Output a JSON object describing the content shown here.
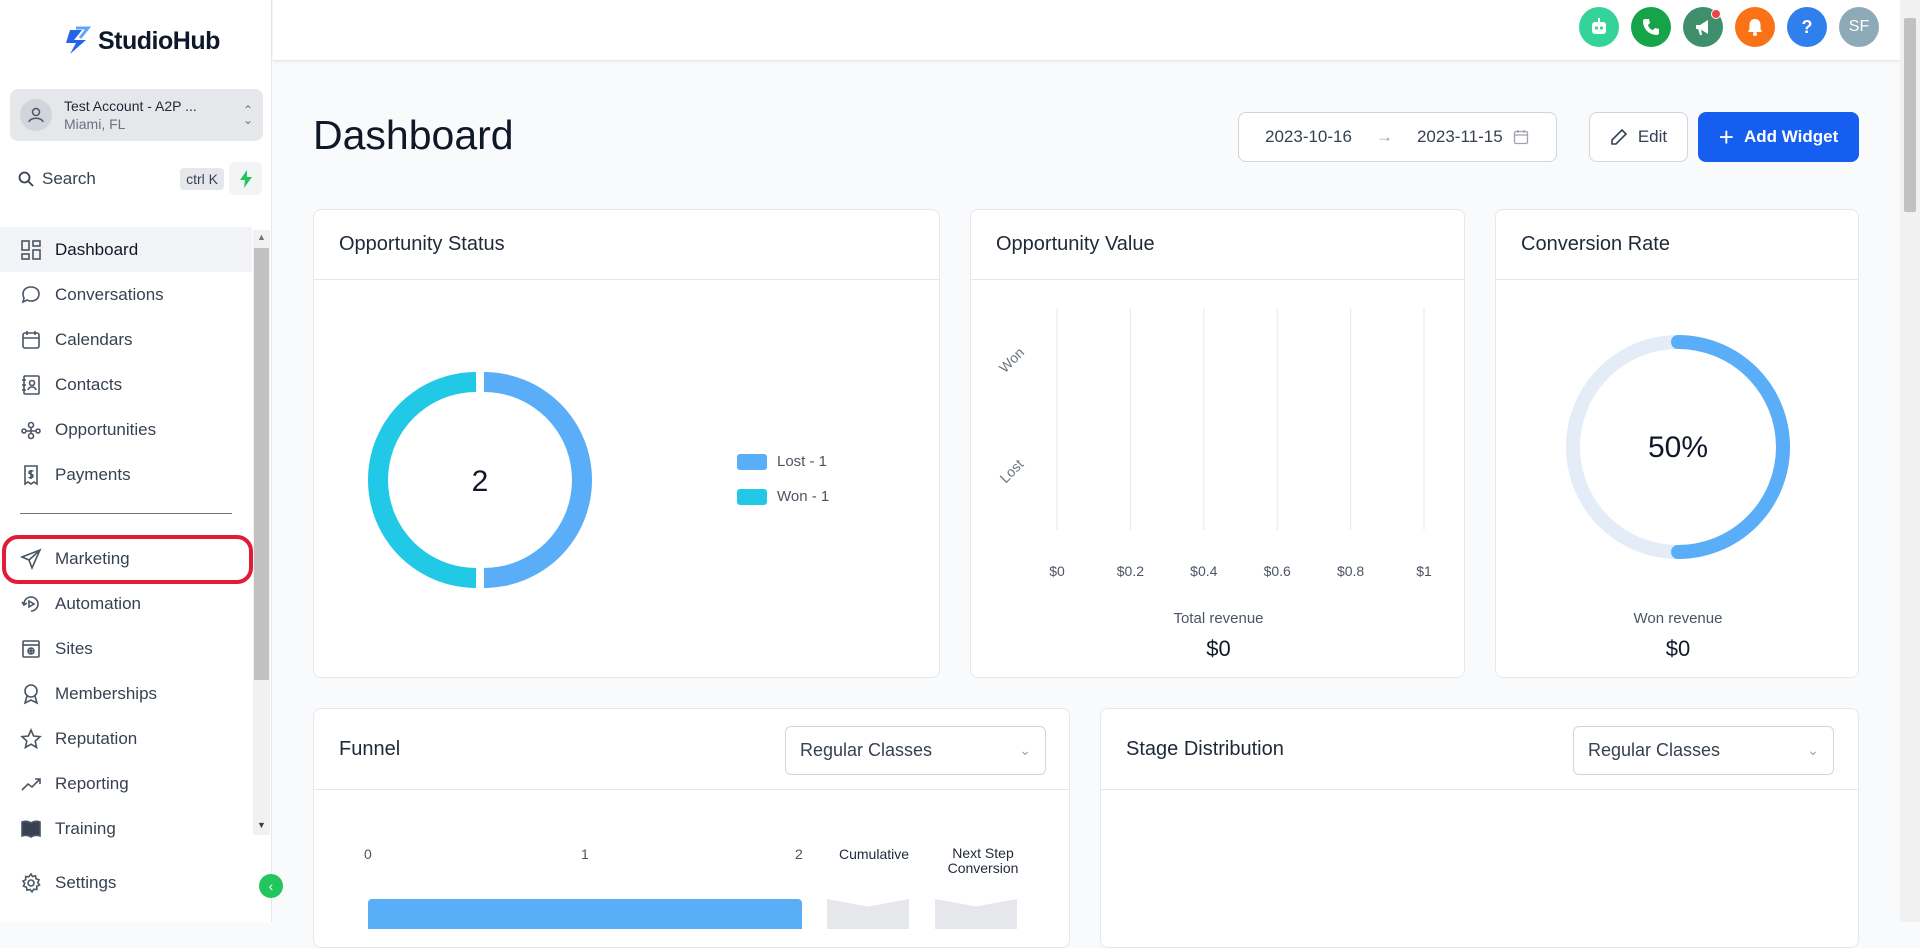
{
  "app": {
    "name": "StudioHub"
  },
  "account": {
    "name": "Test Account - A2P ...",
    "location": "Miami, FL"
  },
  "search": {
    "label": "Search",
    "shortcut": "ctrl K"
  },
  "nav": {
    "items": [
      {
        "label": "Dashboard",
        "icon": "dashboard-icon",
        "active": true
      },
      {
        "label": "Conversations",
        "icon": "chat-icon"
      },
      {
        "label": "Calendars",
        "icon": "calendar-icon"
      },
      {
        "label": "Contacts",
        "icon": "contacts-icon"
      },
      {
        "label": "Opportunities",
        "icon": "opportunities-icon"
      },
      {
        "label": "Payments",
        "icon": "payments-icon"
      }
    ],
    "items2": [
      {
        "label": "Marketing",
        "icon": "send-icon"
      },
      {
        "label": "Automation",
        "icon": "automation-icon"
      },
      {
        "label": "Sites",
        "icon": "sites-icon"
      },
      {
        "label": "Memberships",
        "icon": "badge-icon"
      },
      {
        "label": "Reputation",
        "icon": "star-icon"
      },
      {
        "label": "Reporting",
        "icon": "trend-icon"
      },
      {
        "label": "Training",
        "icon": "book-icon"
      }
    ],
    "settings": "Settings"
  },
  "topbar": {
    "avatar_initials": "SF",
    "help_label": "?",
    "colors": {
      "bot": "#34d399",
      "phone": "#16a34a",
      "announce": "#3f8f6d",
      "bell": "#f97316",
      "help": "#2f80ed",
      "avatar": "#8eaab8"
    }
  },
  "page": {
    "title": "Dashboard",
    "date_start": "2023-10-16",
    "date_end": "2023-11-15",
    "edit_label": "Edit",
    "add_widget_label": "Add Widget"
  },
  "opportunity_status": {
    "title": "Opportunity Status",
    "total": "2",
    "legend": [
      {
        "label": "Lost - 1",
        "color": "#5aaef7"
      },
      {
        "label": "Won - 1",
        "color": "#22c9e6"
      }
    ]
  },
  "opportunity_value": {
    "title": "Opportunity Value",
    "footer_label": "Total revenue",
    "footer_value": "$0"
  },
  "conversion_rate": {
    "title": "Conversion Rate",
    "value": "50%",
    "percent": 50,
    "footer_label": "Won revenue",
    "footer_value": "$0"
  },
  "funnel": {
    "title": "Funnel",
    "select": "Regular Classes",
    "axis": [
      "0",
      "1",
      "2"
    ],
    "cumulative_label": "Cumulative",
    "next_step_label": "Next Step Conversion"
  },
  "stage_distribution": {
    "title": "Stage Distribution",
    "select": "Regular Classes"
  },
  "chart_data": {
    "type": "bar",
    "title": "Opportunity Value",
    "categories": [
      "Won",
      "Lost"
    ],
    "values": [
      0,
      0
    ],
    "xlim": [
      0,
      1
    ],
    "xticks": [
      "$0",
      "$0.2",
      "$0.4",
      "$0.6",
      "$0.8",
      "$1"
    ],
    "grid": true
  }
}
